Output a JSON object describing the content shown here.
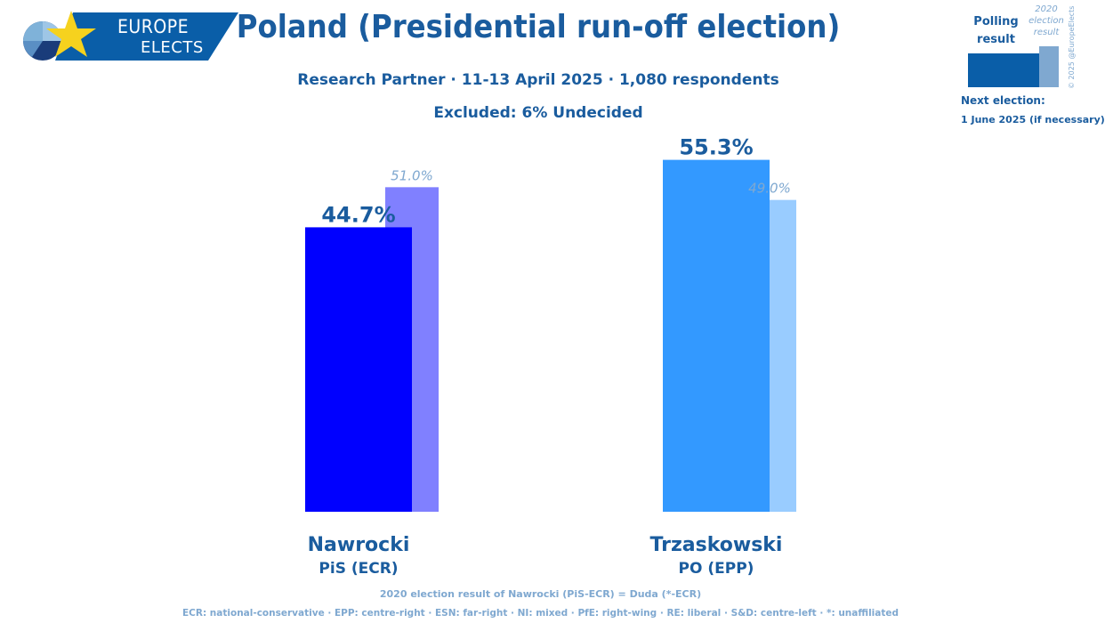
{
  "logo": {
    "line1": "EUROPE",
    "line2": "ELECTS"
  },
  "title": "Poland (Presidential run-off election)",
  "subtitle": "Research Partner · 11-13 April 2025 · 1,080 respondents",
  "excluded": "Excluded: 6% Undecided",
  "legend": {
    "polling": "Polling result",
    "previous": "2020 election result",
    "copyright": "© 2025 @EuropeElects"
  },
  "next_election": {
    "label": "Next election:",
    "date": "1 June 2025 (if necessary)"
  },
  "chart_data": {
    "type": "bar",
    "ylim": [
      0,
      60
    ],
    "categories": [
      "Nawrocki",
      "Trzaskowski"
    ],
    "parties": [
      "PiS (ECR)",
      "PO (EPP)"
    ],
    "series": [
      {
        "values": [
          44.7,
          55.3
        ],
        "labels": [
          "44.7%",
          "55.3%"
        ],
        "colors": [
          "#0000ff",
          "#3399ff"
        ]
      },
      {
        "values": [
          51.0,
          49.0
        ],
        "labels": [
          "51.0%",
          "49.0%"
        ],
        "colors": [
          "#8080ff",
          "#99ccff"
        ]
      }
    ]
  },
  "footer": {
    "line1": "2020 election result of Nawrocki (PiS-ECR) = Duda (*-ECR)",
    "line2": "ECR: national-conservative · EPP: centre-right · ESN: far-right · NI: mixed · PfE: right-wing · RE: liberal · S&D: centre-left · *: unaffiliated"
  },
  "colors": {
    "brand": "#1a5c9e",
    "muted": "#7fa8d0"
  }
}
